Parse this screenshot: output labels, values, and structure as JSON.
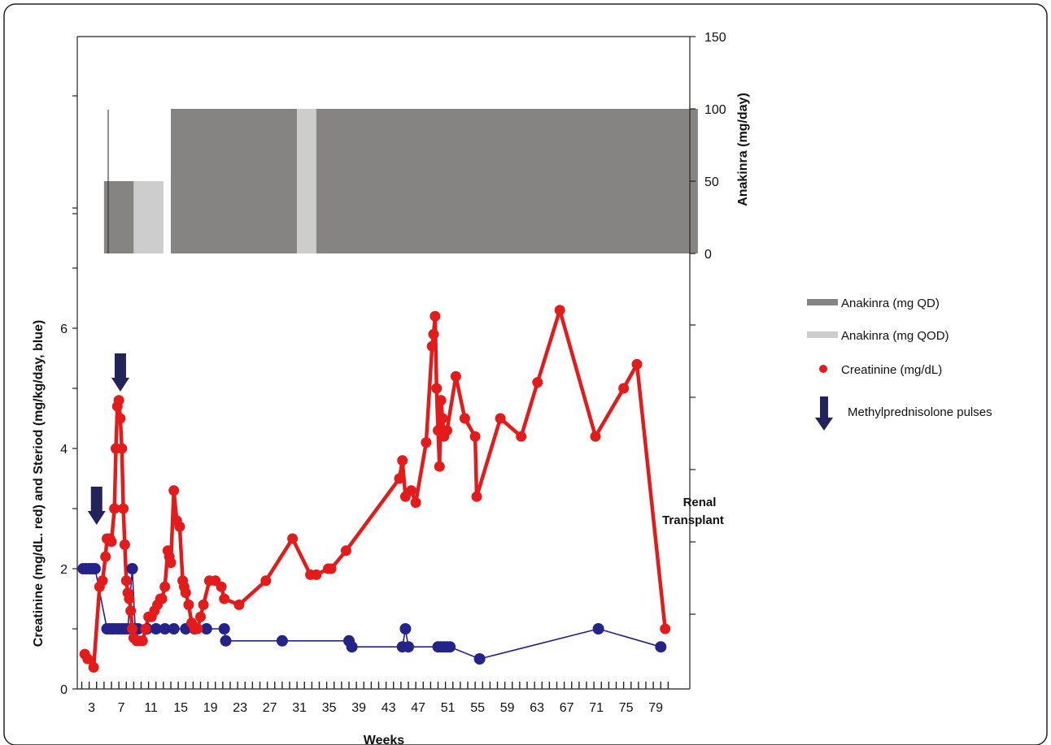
{
  "chart_data": {
    "type": "line",
    "xlabel": "Weeks",
    "ylabel_left": "Creatinine (mg/dL. red) and Steriod (mg/kg/day, blue)",
    "ylabel_right": "Anakinra (mg/day)",
    "x_tick_labels": [
      "3",
      "7",
      "11",
      "15",
      "19",
      "23",
      "27",
      "31",
      "35",
      "39",
      "43",
      "47",
      "51",
      "55",
      "59",
      "63",
      "67",
      "71",
      "75",
      "79"
    ],
    "xlim": [
      0,
      79
    ],
    "left_ylim": [
      0,
      8
    ],
    "left_y_ticks": [
      0,
      2,
      4,
      6
    ],
    "right_ylim": [
      0,
      150
    ],
    "right_y_ticks": [
      0,
      50,
      100,
      150
    ],
    "grid": false,
    "legend_position": "right",
    "legend": [
      {
        "label": "Anakinra (mg QD)",
        "symbol": "bar",
        "color": "#868482"
      },
      {
        "label": "Anakinra (mg QOD)",
        "symbol": "bar",
        "color": "#cdcdcd"
      },
      {
        "label": "Creatinine (mg/dL)",
        "symbol": "dot",
        "color": "#e31b1b"
      },
      {
        "label": "Methylprednisolone  pulses",
        "symbol": "arrow",
        "color": "#23235c"
      }
    ],
    "anakinra_segments": [
      {
        "series": "Anakinra (mg QD)",
        "start": 1.5,
        "end": 3.5,
        "dose": 50
      },
      {
        "series": "Anakinra (mg QOD)",
        "start": 3.5,
        "end": 5.5,
        "dose": 50
      },
      {
        "series": "Anakinra (mg QD)",
        "start": 6,
        "end": 14.5,
        "dose": 100
      },
      {
        "series": "Anakinra (mg QOD)",
        "start": 14.5,
        "end": 15.8,
        "dose": 100
      },
      {
        "series": "Anakinra (mg QD)",
        "start": 15.8,
        "end": 41.5,
        "dose": 100
      }
    ],
    "series": [
      {
        "name": "Creatinine (mg/dL)",
        "color": "#e31b1b",
        "points": [
          [
            0.2,
            0.58
          ],
          [
            0.4,
            0.5
          ],
          [
            0.8,
            0.36
          ],
          [
            1.2,
            1.7
          ],
          [
            1.4,
            1.8
          ],
          [
            1.6,
            2.2
          ],
          [
            1.7,
            2.5
          ],
          [
            1.9,
            2.5
          ],
          [
            2.0,
            2.45
          ],
          [
            2.2,
            3.0
          ],
          [
            2.3,
            4.0
          ],
          [
            2.4,
            4.7
          ],
          [
            2.5,
            4.8
          ],
          [
            2.6,
            4.5
          ],
          [
            2.7,
            4.0
          ],
          [
            2.8,
            3.0
          ],
          [
            2.9,
            2.4
          ],
          [
            3.0,
            1.8
          ],
          [
            3.1,
            1.6
          ],
          [
            3.2,
            1.5
          ],
          [
            3.3,
            1.3
          ],
          [
            3.4,
            1.0
          ],
          [
            3.5,
            0.85
          ],
          [
            3.7,
            0.8
          ],
          [
            3.9,
            0.8
          ],
          [
            4.1,
            0.8
          ],
          [
            4.3,
            1.0
          ],
          [
            4.5,
            1.2
          ],
          [
            4.7,
            1.2
          ],
          [
            4.9,
            1.3
          ],
          [
            5.1,
            1.4
          ],
          [
            5.3,
            1.5
          ],
          [
            5.4,
            1.5
          ],
          [
            5.6,
            1.7
          ],
          [
            5.8,
            2.3
          ],
          [
            5.9,
            2.2
          ],
          [
            6.0,
            2.1
          ],
          [
            6.2,
            3.3
          ],
          [
            6.4,
            2.8
          ],
          [
            6.6,
            2.7
          ],
          [
            6.8,
            1.8
          ],
          [
            6.9,
            1.7
          ],
          [
            7.0,
            1.6
          ],
          [
            7.2,
            1.4
          ],
          [
            7.4,
            1.1
          ],
          [
            7.6,
            1.0
          ],
          [
            7.8,
            1.0
          ],
          [
            8.0,
            1.2
          ],
          [
            8.2,
            1.4
          ],
          [
            8.6,
            1.8
          ],
          [
            9.0,
            1.8
          ],
          [
            9.4,
            1.7
          ],
          [
            9.6,
            1.5
          ],
          [
            10.6,
            1.4
          ],
          [
            12.4,
            1.8
          ],
          [
            14.2,
            2.5
          ],
          [
            15.4,
            1.9
          ],
          [
            15.8,
            1.9
          ],
          [
            16.6,
            2.0
          ],
          [
            16.8,
            2.0
          ],
          [
            17.8,
            2.3
          ],
          [
            21.4,
            3.5
          ],
          [
            21.6,
            3.8
          ],
          [
            21.8,
            3.2
          ],
          [
            22.2,
            3.3
          ],
          [
            22.5,
            3.1
          ],
          [
            23.2,
            4.1
          ],
          [
            23.6,
            5.7
          ],
          [
            23.7,
            5.9
          ],
          [
            23.8,
            6.2
          ],
          [
            23.9,
            5.0
          ],
          [
            24.0,
            4.3
          ],
          [
            24.1,
            3.7
          ],
          [
            24.2,
            4.8
          ],
          [
            24.3,
            4.5
          ],
          [
            24.4,
            4.2
          ],
          [
            24.6,
            4.3
          ],
          [
            25.2,
            5.2
          ],
          [
            25.8,
            4.5
          ],
          [
            26.5,
            4.2
          ],
          [
            26.6,
            3.2
          ],
          [
            28.2,
            4.5
          ],
          [
            29.6,
            4.2
          ],
          [
            30.7,
            5.1
          ],
          [
            32.2,
            6.3
          ],
          [
            34.6,
            4.2
          ],
          [
            36.5,
            5.0
          ],
          [
            37.4,
            5.4
          ],
          [
            39.3,
            1.0
          ]
        ]
      },
      {
        "name": "Steroid (mg/kg/day)",
        "color": "#23238a",
        "points": [
          [
            0.1,
            2.0
          ],
          [
            0.3,
            2.0
          ],
          [
            0.5,
            2.0
          ],
          [
            0.7,
            2.0
          ],
          [
            0.9,
            2.0
          ],
          [
            1.7,
            1.0
          ],
          [
            1.9,
            1.0
          ],
          [
            2.1,
            1.0
          ],
          [
            2.3,
            1.0
          ],
          [
            2.5,
            1.0
          ],
          [
            2.7,
            1.0
          ],
          [
            2.9,
            1.0
          ],
          [
            3.1,
            1.0
          ],
          [
            3.4,
            2.0
          ],
          [
            3.6,
            1.0
          ],
          [
            3.8,
            1.0
          ],
          [
            4.4,
            1.0
          ],
          [
            5.0,
            1.0
          ],
          [
            5.6,
            1.0
          ],
          [
            6.2,
            1.0
          ],
          [
            7.0,
            1.0
          ],
          [
            7.6,
            1.0
          ],
          [
            8.4,
            1.0
          ],
          [
            9.6,
            1.0
          ],
          [
            9.7,
            0.8
          ],
          [
            13.5,
            0.8
          ],
          [
            18.0,
            0.8
          ],
          [
            18.2,
            0.7
          ],
          [
            21.6,
            0.7
          ],
          [
            21.8,
            1.0
          ],
          [
            22.0,
            0.7
          ],
          [
            24.0,
            0.7
          ],
          [
            24.2,
            0.7
          ],
          [
            24.4,
            0.7
          ],
          [
            24.6,
            0.7
          ],
          [
            24.8,
            0.7
          ],
          [
            26.8,
            0.5
          ],
          [
            34.8,
            1.0
          ],
          [
            39.0,
            0.7
          ]
        ]
      }
    ],
    "pulse_arrows": [
      1.0,
      2.6
    ],
    "annotations": [
      {
        "text_line1": "Renal",
        "text_line2": "Transplant",
        "x": 38.0,
        "y": 3.0
      }
    ]
  }
}
